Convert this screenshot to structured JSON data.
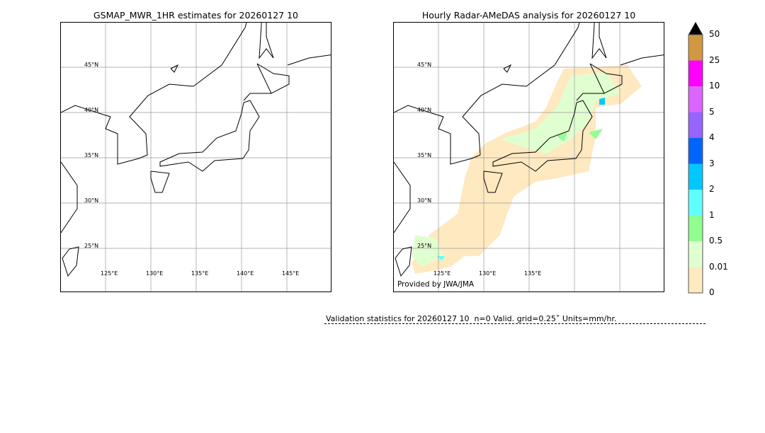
{
  "left_panel": {
    "title": "GSMAP_MWR_1HR estimates for 20260127 10"
  },
  "right_panel": {
    "title": "Hourly Radar-AMeDAS analysis for 20260127 10",
    "credit": "Provided by JWA/JMA"
  },
  "lat_labels": [
    "45°N",
    "40°N",
    "35°N",
    "30°N",
    "25°N"
  ],
  "lon_labels": [
    "125°E",
    "130°E",
    "135°E",
    "140°E",
    "145°E"
  ],
  "right_lon_labels": [
    "125°E",
    "130°E",
    "135°E"
  ],
  "colorbar": {
    "labels": [
      "0",
      "0.01",
      "0.5",
      "1",
      "2",
      "3",
      "4",
      "5",
      "10",
      "25",
      "50"
    ],
    "colors": [
      "#ffe9c0",
      "#e0ffd0",
      "#90ff90",
      "#60ffff",
      "#00c8ff",
      "#0064ff",
      "#9664ff",
      "#dc64ff",
      "#ff00ff",
      "#d09840"
    ],
    "extend": "max"
  },
  "validation": {
    "text": "Validation statistics for 20260127 10  n=0 Valid. grid=0.25˚ Units=mm/hr."
  }
}
